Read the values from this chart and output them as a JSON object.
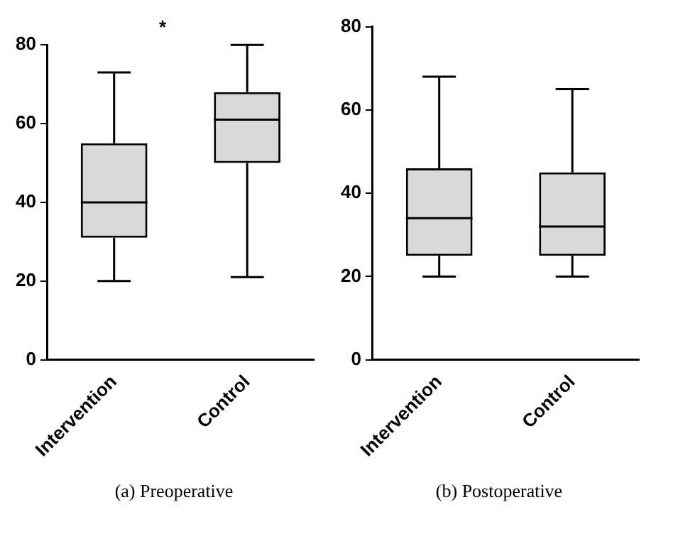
{
  "chart_data": [
    {
      "type": "box",
      "title": "*",
      "categories": [
        "Intervention",
        "Control"
      ],
      "series": [
        {
          "color": "#d9d9d9",
          "boxes": [
            {
              "low": 20,
              "q1": 31,
              "median": 40,
              "q3": 55,
              "high": 73
            },
            {
              "low": 21,
              "q1": 50,
              "median": 61,
              "q3": 68,
              "high": 80
            }
          ]
        }
      ],
      "ylim": [
        0,
        80
      ],
      "yticks": [
        0,
        20,
        40,
        60,
        80
      ],
      "grid": false,
      "annotations": [
        "(a) Preoperative"
      ]
    },
    {
      "type": "box",
      "categories": [
        "Intervention",
        "Control"
      ],
      "series": [
        {
          "color": "#d9d9d9",
          "boxes": [
            {
              "low": 20,
              "q1": 25,
              "median": 34,
              "q3": 46,
              "high": 68
            },
            {
              "low": 20,
              "q1": 25,
              "median": 32,
              "q3": 45,
              "high": 65
            }
          ]
        }
      ],
      "ylim": [
        0,
        80
      ],
      "yticks": [
        0,
        20,
        40,
        60,
        80
      ],
      "grid": false,
      "annotations": [
        "(b) Postoperative"
      ]
    }
  ]
}
